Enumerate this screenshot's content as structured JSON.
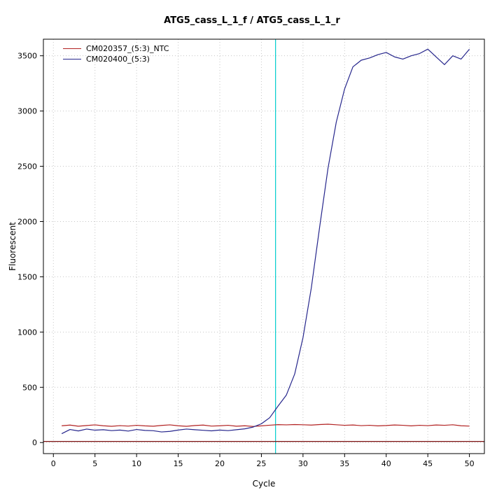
{
  "chart_data": {
    "type": "line",
    "title": "ATG5_cass_L_1_f / ATG5_cass_L_1_r",
    "xlabel": "Cycle",
    "ylabel": "Fluorescent",
    "xlim": [
      -1.2,
      51.8
    ],
    "ylim": [
      -100,
      3650
    ],
    "xticks": [
      0,
      5,
      10,
      15,
      20,
      25,
      30,
      35,
      40,
      45,
      50
    ],
    "yticks": [
      0,
      500,
      1000,
      1500,
      2000,
      2500,
      3000,
      3500
    ],
    "grid": true,
    "legend_position": "top-left",
    "x": [
      1,
      2,
      3,
      4,
      5,
      6,
      7,
      8,
      9,
      10,
      11,
      12,
      13,
      14,
      15,
      16,
      17,
      18,
      19,
      20,
      21,
      22,
      23,
      24,
      25,
      26,
      27,
      28,
      29,
      30,
      31,
      32,
      33,
      34,
      35,
      36,
      37,
      38,
      39,
      40,
      41,
      42,
      43,
      44,
      45,
      46,
      47,
      48,
      49,
      50
    ],
    "series": [
      {
        "name": "CM020357_(5:3)_NTC",
        "color": "#B22222",
        "values": [
          152,
          158,
          148,
          154,
          160,
          152,
          147,
          153,
          149,
          156,
          151,
          148,
          155,
          160,
          152,
          147,
          154,
          158,
          149,
          152,
          156,
          148,
          152,
          146,
          151,
          157,
          162,
          160,
          163,
          161,
          158,
          163,
          166,
          161,
          156,
          159,
          153,
          156,
          151,
          154,
          159,
          156,
          151,
          156,
          153,
          159,
          156,
          161,
          152,
          149
        ]
      },
      {
        "name": "CM020400_(5:3)",
        "color": "#26268C",
        "values": [
          80,
          118,
          105,
          122,
          112,
          116,
          108,
          113,
          104,
          118,
          110,
          107,
          96,
          101,
          113,
          122,
          116,
          111,
          106,
          113,
          108,
          116,
          124,
          140,
          170,
          225,
          330,
          430,
          620,
          950,
          1400,
          1950,
          2480,
          2900,
          3200,
          3400,
          3460,
          3480,
          3510,
          3530,
          3490,
          3470,
          3500,
          3520,
          3560,
          3490,
          3420,
          3500,
          3470,
          3560
        ]
      }
    ],
    "ct_line": {
      "x": 26.7,
      "color": "#00CDCD"
    },
    "threshold_line": {
      "y": 10,
      "color": "#7B1010"
    },
    "grid_color": "#c6c6c6",
    "axis_color": "#000000"
  }
}
